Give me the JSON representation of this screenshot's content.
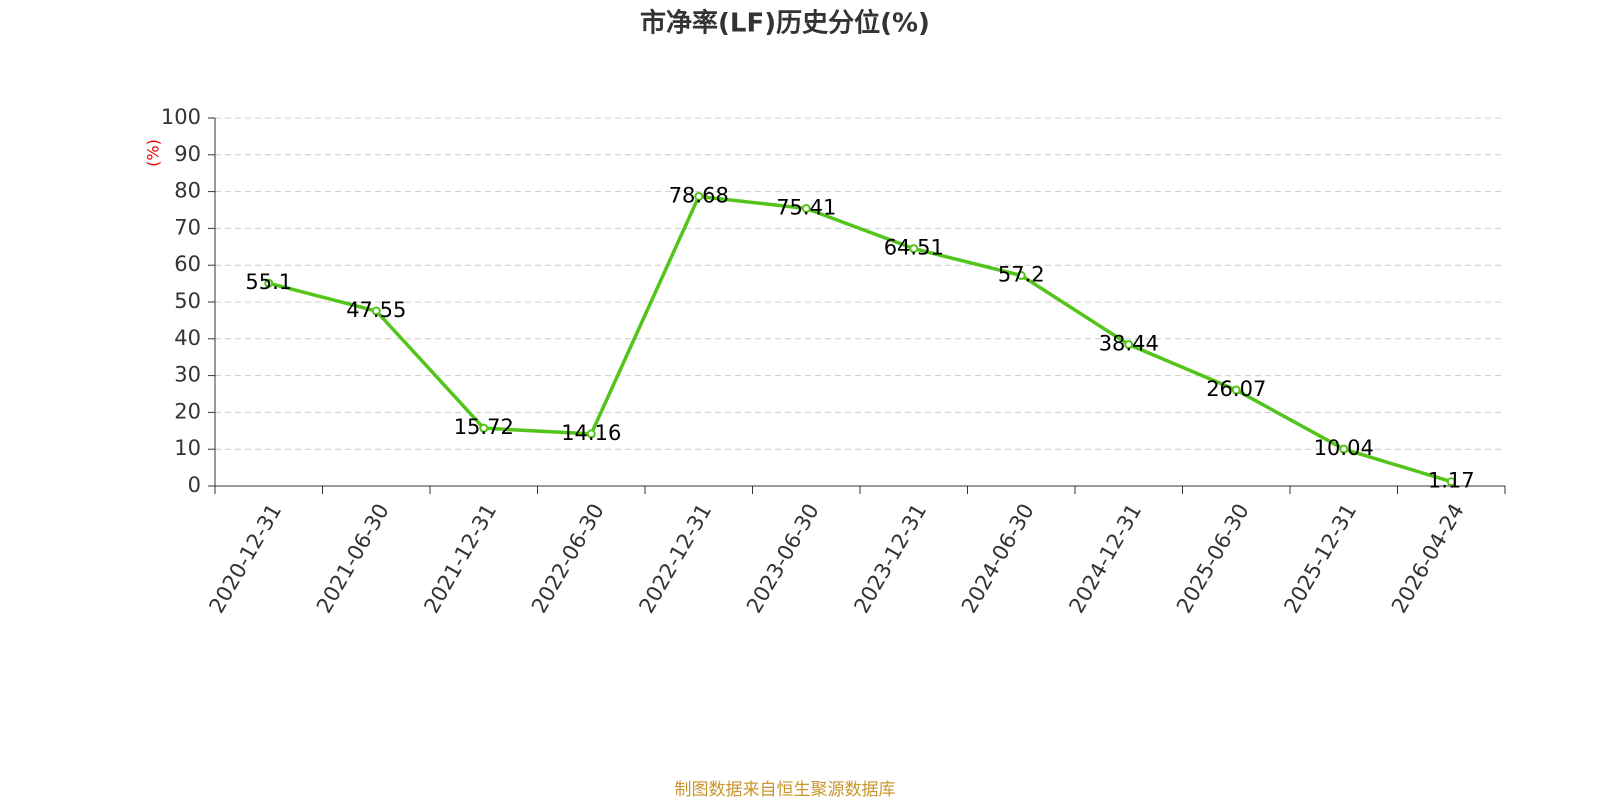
{
  "chart_data": {
    "type": "line",
    "title": "市净率(LF)历史分位(%)",
    "y_label": "(%)",
    "categories": [
      "2020-12-31",
      "2021-06-30",
      "2021-12-31",
      "2022-06-30",
      "2022-12-31",
      "2023-06-30",
      "2023-12-31",
      "2024-06-30",
      "2024-12-31",
      "2025-06-30",
      "2025-12-31",
      "2026-04-24"
    ],
    "values": [
      55.1,
      47.55,
      15.72,
      14.16,
      78.68,
      75.41,
      64.51,
      57.2,
      38.44,
      26.07,
      10.04,
      1.17
    ],
    "color": "#52c41a",
    "ylim": [
      0,
      100
    ],
    "yticks": [
      0,
      10,
      20,
      30,
      40,
      50,
      60,
      70,
      80,
      90,
      100
    ],
    "grid": true,
    "source": "制图数据来自恒生聚源数据库"
  }
}
